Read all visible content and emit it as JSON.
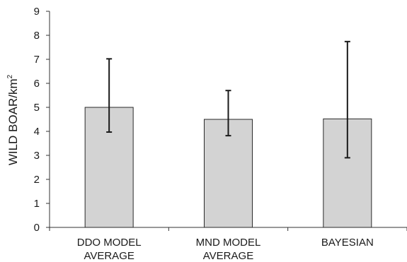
{
  "chart_data": {
    "type": "bar",
    "categories": [
      [
        "DDO MODEL",
        "AVERAGE"
      ],
      [
        "MND MODEL",
        "AVERAGE"
      ],
      [
        "BAYESIAN"
      ]
    ],
    "values": [
      5.0,
      4.5,
      4.52
    ],
    "error_low": [
      3.97,
      3.82,
      2.9
    ],
    "error_high": [
      7.02,
      5.7,
      7.74
    ],
    "ylabel": "WILD BOAR/km",
    "ylabel_superscript": "2",
    "ylim": [
      0,
      9
    ],
    "yticks": [
      0,
      1,
      2,
      3,
      4,
      5,
      6,
      7,
      8,
      9
    ],
    "grid": false,
    "colors": {
      "bar_fill": "#d3d3d3",
      "bar_stroke": "#2a2a2a",
      "axis": "#333333"
    }
  }
}
